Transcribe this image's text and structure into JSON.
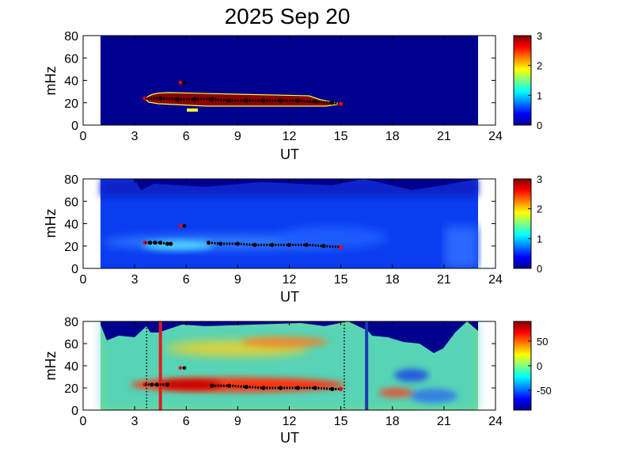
{
  "title": "2025 Sep 20",
  "colors": {
    "background": "#000080",
    "jet": [
      "#00008f",
      "#0000ff",
      "#00ffff",
      "#ffff00",
      "#ff0000",
      "#800000"
    ],
    "track_marker": "#000000",
    "red_marker": "#ff0000",
    "vertical_red": "#e31a1c",
    "vertical_blue": "#1f3aa8"
  },
  "chart_data": [
    {
      "type": "heatmap",
      "panel": 1,
      "xlabel": "UT",
      "ylabel": "mHz",
      "xlim": [
        0,
        24
      ],
      "ylim": [
        0,
        80
      ],
      "xticks": [
        "0",
        "3",
        "6",
        "9",
        "12",
        "15",
        "18",
        "21",
        "24"
      ],
      "yticks": [
        "0",
        "20",
        "40",
        "60",
        "80"
      ],
      "data_range_ut": [
        1,
        23
      ],
      "colorbar": {
        "range": [
          0,
          3
        ],
        "ticks": [
          "0",
          "1",
          "2",
          "3"
        ]
      },
      "detected_track": {
        "ut": [
          3.6,
          4.5,
          5.5,
          6.5,
          7.5,
          8.5,
          9.5,
          10.5,
          11.5,
          12.5,
          13.5,
          14.5,
          15.0
        ],
        "freq_mhz": [
          24,
          24,
          23,
          23,
          23,
          22,
          22,
          22,
          22,
          22,
          21,
          20,
          19
        ]
      },
      "isolated_points": [
        {
          "ut": 5.8,
          "freq_mhz": 38
        }
      ]
    },
    {
      "type": "heatmap",
      "panel": 2,
      "xlabel": "UT",
      "ylabel": "mHz",
      "xlim": [
        0,
        24
      ],
      "ylim": [
        0,
        80
      ],
      "xticks": [
        "0",
        "3",
        "6",
        "9",
        "12",
        "15",
        "18",
        "21",
        "24"
      ],
      "yticks": [
        "0",
        "20",
        "40",
        "60",
        "80"
      ],
      "data_range_ut": [
        1,
        23
      ],
      "colorbar": {
        "range": [
          0,
          3
        ],
        "ticks": [
          "0",
          "1",
          "2",
          "3"
        ]
      },
      "detected_track": {
        "ut": [
          3.6,
          3.9,
          4.2,
          4.5,
          4.9,
          5.1,
          7.3,
          8.0,
          9.0,
          10.0,
          11.0,
          12.0,
          13.0,
          14.0,
          15.0
        ],
        "freq_mhz": [
          23,
          23,
          23,
          23,
          22,
          22,
          23,
          22,
          22,
          21,
          21,
          21,
          21,
          20,
          19
        ]
      },
      "isolated_points": [
        {
          "ut": 5.8,
          "freq_mhz": 38
        }
      ]
    },
    {
      "type": "heatmap",
      "panel": 3,
      "xlabel": "UT",
      "ylabel": "mHz",
      "xlim": [
        0,
        24
      ],
      "ylim": [
        0,
        80
      ],
      "xticks": [
        "0",
        "3",
        "6",
        "9",
        "12",
        "15",
        "18",
        "21",
        "24"
      ],
      "yticks": [
        "0",
        "20",
        "40",
        "60",
        "80"
      ],
      "data_range_ut": [
        1,
        23
      ],
      "colorbar": {
        "range": [
          -90,
          90
        ],
        "ticks": [
          "50",
          "0",
          "-50"
        ]
      },
      "detected_track": {
        "ut": [
          3.6,
          4.0,
          4.3,
          4.9,
          7.5,
          8.5,
          9.5,
          10.5,
          11.5,
          12.5,
          13.5,
          14.5,
          15.0
        ],
        "freq_mhz": [
          23,
          23,
          23,
          23,
          22,
          22,
          21,
          20,
          20,
          20,
          20,
          19,
          19
        ]
      },
      "isolated_points": [
        {
          "ut": 5.8,
          "freq_mhz": 38
        }
      ],
      "vertical_lines": [
        {
          "ut": 4.5,
          "color": "red",
          "style": "solid"
        },
        {
          "ut": 16.5,
          "color": "blue",
          "style": "solid"
        },
        {
          "ut": 3.7,
          "color": "black",
          "style": "dotted"
        },
        {
          "ut": 15.2,
          "color": "black",
          "style": "dotted"
        }
      ]
    }
  ]
}
